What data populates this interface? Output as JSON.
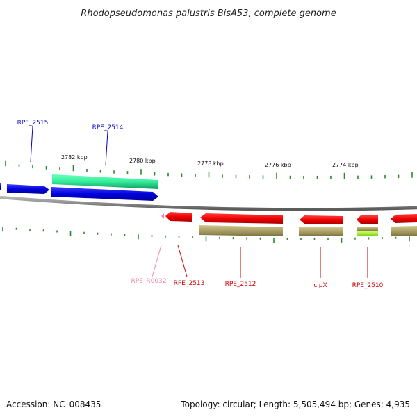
{
  "title": "Rhodopseudomonas palustris BisA53, complete genome",
  "footer": {
    "accession": "Accession: NC_008435",
    "summary": "Topology: circular; Length: 5,505,494 bp; Genes: 4,935"
  },
  "scale_labels": [
    "2782 kbp",
    "2780 kbp",
    "2778 kbp",
    "2776 kbp",
    "2774 kbp"
  ],
  "gene_labels": [
    "RPE_2515",
    "RPE_2514",
    "RPE_R0032",
    "RPE_2513",
    "RPE_2512",
    "clpX",
    "RPE_2510"
  ],
  "colors": {
    "forward_gene": "#0000dd",
    "forward_cds": "#33ee99",
    "reverse_gene": "#ee0000",
    "reverse_cds": "#aaa066",
    "rna": "#ee88aa",
    "highlight": "#99ee22",
    "backbone": "#8a8a8a",
    "tick": "#2a8a2a"
  }
}
